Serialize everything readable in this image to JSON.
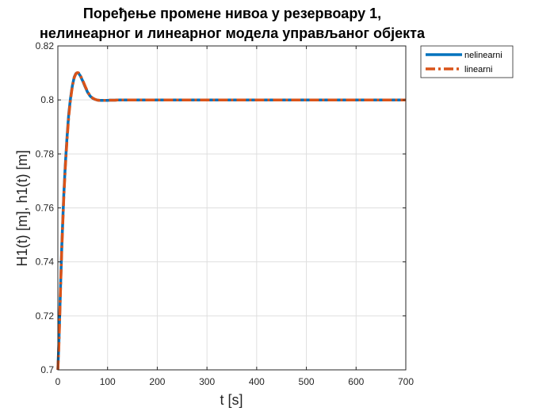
{
  "chart_data": {
    "type": "line",
    "title_lines": [
      "Поређење промене нивоа у резервоару 1,",
      "нелинеарног и линеарног модела управљаног објекта"
    ],
    "xlabel": "t [s]",
    "ylabel": "H1(t) [m], h1(t) [m]",
    "xlim": [
      0,
      700
    ],
    "ylim": [
      0.7,
      0.82
    ],
    "xticks": [
      0,
      100,
      200,
      300,
      400,
      500,
      600,
      700
    ],
    "xtick_labels": [
      "0",
      "100",
      "200",
      "300",
      "400",
      "500",
      "600",
      "700"
    ],
    "yticks": [
      0.7,
      0.72,
      0.74,
      0.76,
      0.78,
      0.8,
      0.82
    ],
    "ytick_labels": [
      "0.7",
      "0.72",
      "0.74",
      "0.76",
      "0.78",
      "0.8",
      "0.82"
    ],
    "grid": true,
    "legend_position": "outside-top-right",
    "series": [
      {
        "name": "nelinearni",
        "color": "#0072BD",
        "style": "solid",
        "x": [
          0,
          2,
          4,
          6,
          8,
          10,
          12,
          15,
          18,
          20,
          22,
          25,
          28,
          30,
          33,
          36,
          38,
          40,
          42,
          45,
          48,
          50,
          55,
          60,
          65,
          70,
          75,
          80,
          85,
          90,
          95,
          100,
          105,
          110,
          115,
          120,
          125,
          130,
          140,
          150,
          175,
          200,
          250,
          300,
          400,
          500,
          600,
          700
        ],
        "y": [
          0.7,
          0.71,
          0.722,
          0.735,
          0.746,
          0.756,
          0.765,
          0.776,
          0.785,
          0.79,
          0.795,
          0.8,
          0.804,
          0.806,
          0.8085,
          0.8097,
          0.81,
          0.81,
          0.8098,
          0.809,
          0.8078,
          0.807,
          0.8048,
          0.8028,
          0.8014,
          0.8006,
          0.8002,
          0.7999,
          0.7998,
          0.7998,
          0.7998,
          0.7998,
          0.7999,
          0.7999,
          0.7999,
          0.8,
          0.8,
          0.8,
          0.8,
          0.8,
          0.8,
          0.8,
          0.8,
          0.8,
          0.8,
          0.8,
          0.8,
          0.8
        ]
      },
      {
        "name": "linearni",
        "color": "#D95319",
        "style": "dashdot",
        "x": [
          0,
          2,
          4,
          6,
          8,
          10,
          12,
          15,
          18,
          20,
          22,
          25,
          28,
          30,
          33,
          36,
          38,
          40,
          42,
          45,
          48,
          50,
          55,
          60,
          65,
          70,
          75,
          80,
          85,
          90,
          95,
          100,
          105,
          110,
          115,
          120,
          125,
          130,
          140,
          150,
          175,
          200,
          250,
          300,
          400,
          500,
          600,
          700
        ],
        "y": [
          0.7,
          0.709,
          0.721,
          0.734,
          0.745,
          0.755,
          0.764,
          0.775,
          0.784,
          0.789,
          0.794,
          0.7995,
          0.8036,
          0.8058,
          0.8083,
          0.8096,
          0.81,
          0.8101,
          0.81,
          0.8092,
          0.808,
          0.8072,
          0.805,
          0.803,
          0.8015,
          0.8007,
          0.8002,
          0.7999,
          0.7998,
          0.7998,
          0.7998,
          0.7998,
          0.7999,
          0.7999,
          0.7999,
          0.8,
          0.8,
          0.8,
          0.8,
          0.8,
          0.8,
          0.8,
          0.8,
          0.8,
          0.8,
          0.8,
          0.8,
          0.8
        ]
      }
    ]
  }
}
